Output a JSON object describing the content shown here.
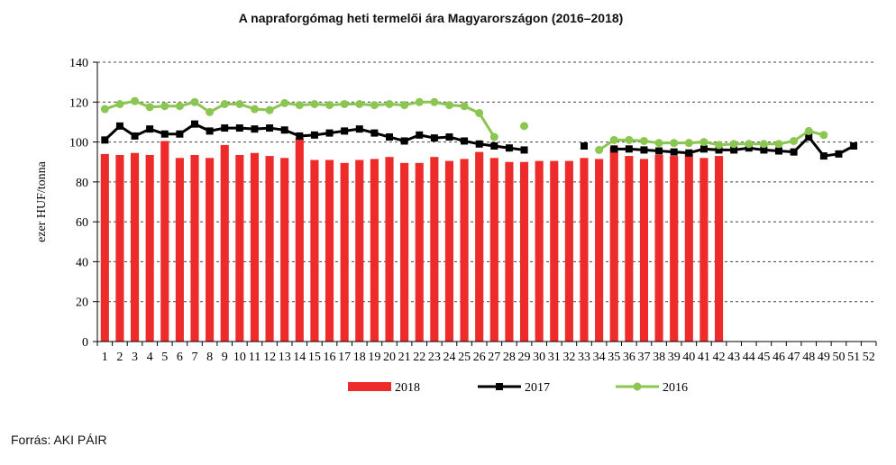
{
  "chart_data": {
    "type": "bar+line",
    "title": "A napraforgómag heti termelői ára Magyarországon (2016–2018)",
    "ylabel": "ezer HUF/tonna",
    "xlabel": "",
    "ylim": [
      0,
      140
    ],
    "yticks": [
      0,
      20,
      40,
      60,
      80,
      100,
      120,
      140
    ],
    "grid": "horizontal dashed",
    "legend_position": "bottom",
    "categories": [
      "1",
      "2",
      "3",
      "4",
      "5",
      "6",
      "7",
      "8",
      "9",
      "10",
      "11",
      "12",
      "13",
      "14",
      "15",
      "16",
      "17",
      "18",
      "19",
      "20",
      "21",
      "22",
      "23",
      "24",
      "25",
      "26",
      "27",
      "28",
      "29",
      "30",
      "31",
      "32",
      "33",
      "34",
      "35",
      "36",
      "37",
      "38",
      "39",
      "40",
      "41",
      "42",
      "43",
      "44",
      "45",
      "46",
      "47",
      "48",
      "49",
      "50",
      "51",
      "52"
    ],
    "series": [
      {
        "name": "2018",
        "kind": "bar",
        "color": "#ee2b2b",
        "values": [
          94,
          93.5,
          94.5,
          93.5,
          100.5,
          92,
          93.5,
          92,
          98.5,
          93.5,
          94.5,
          93,
          92,
          102,
          91,
          91,
          89.5,
          91,
          91.5,
          92.5,
          89.5,
          89.5,
          92.5,
          90.5,
          91.5,
          95,
          92,
          90,
          90,
          90.5,
          90.5,
          90.5,
          92,
          91.5,
          97.5,
          93,
          91.5,
          93.5,
          93,
          94,
          92,
          93,
          null,
          null,
          null,
          null,
          null,
          null,
          null,
          null,
          null,
          null
        ]
      },
      {
        "name": "2017",
        "kind": "line",
        "color": "#000000",
        "marker": "square",
        "values": [
          101,
          108,
          103,
          106.5,
          104,
          104,
          109,
          105.5,
          107,
          107,
          106.5,
          107,
          106,
          103,
          103.5,
          104.5,
          105.5,
          106.5,
          104.5,
          102.5,
          100.5,
          103.5,
          102,
          102.5,
          100.5,
          99,
          98,
          97,
          96,
          null,
          null,
          null,
          98,
          null,
          96.5,
          96.5,
          96,
          95.5,
          95,
          94.5,
          96.5,
          96,
          96,
          97,
          96,
          95.5,
          95,
          102.5,
          93,
          94,
          98,
          null
        ]
      },
      {
        "name": "2016",
        "kind": "line",
        "color": "#8cc652",
        "marker": "circle",
        "values": [
          116.5,
          119,
          120.5,
          117.5,
          118,
          118,
          120,
          115,
          119,
          119,
          116.5,
          116,
          119.5,
          118.5,
          119,
          118.5,
          119,
          119,
          118.5,
          119,
          118.5,
          120,
          120,
          118.5,
          118,
          114.5,
          102.5,
          null,
          108,
          null,
          null,
          null,
          null,
          96,
          101,
          101,
          100.5,
          99.5,
          99.5,
          99.5,
          100,
          98.5,
          99,
          99,
          99,
          99,
          100.5,
          105.5,
          103.5,
          null,
          null,
          null
        ]
      }
    ]
  },
  "source": "Forrás: AKI PÁIR"
}
